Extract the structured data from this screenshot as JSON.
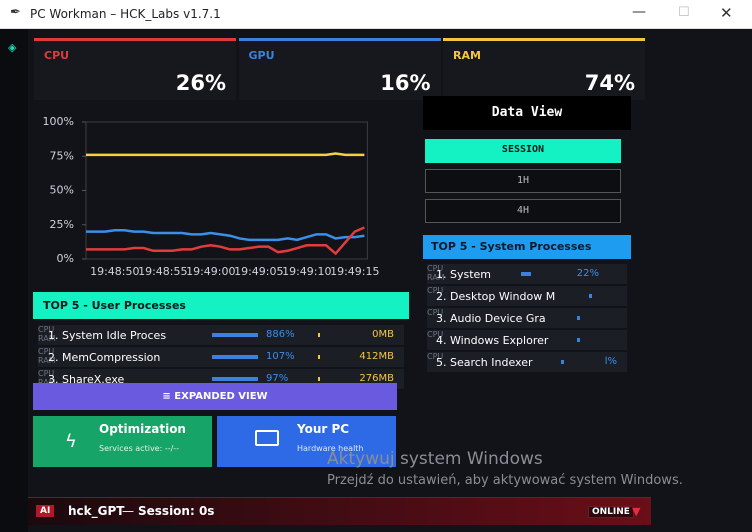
{
  "window": {
    "title": "PC Workman – HCK_Labs v1.7.1"
  },
  "stats": [
    {
      "label": "CPU",
      "value": "26%",
      "color": "#e03b3b"
    },
    {
      "label": "GPU",
      "value": "16%",
      "color": "#3b82e0"
    },
    {
      "label": "RAM",
      "value": "74%",
      "color": "#f5c542"
    }
  ],
  "chart_data": {
    "type": "line",
    "categories": [
      null,
      null,
      null,
      "19:48:50",
      null,
      null,
      null,
      null,
      "19:48:55",
      null,
      null,
      null,
      null,
      "19:49:00",
      null,
      null,
      null,
      null,
      "19:49:05",
      null,
      null,
      null,
      null,
      "19:49:10",
      null,
      null,
      null,
      null,
      "19:49:15",
      null
    ],
    "series": [
      {
        "color": "#f5d142",
        "values": [
          76,
          76,
          76,
          76,
          76,
          76,
          76,
          76,
          76,
          76,
          76,
          76,
          76,
          76,
          76,
          76,
          76,
          76,
          76,
          76,
          76,
          76,
          76,
          76,
          76,
          76,
          77,
          76,
          76,
          76
        ]
      },
      {
        "color": "#3b8fe8",
        "values": [
          20,
          20,
          20,
          21,
          21,
          20,
          20,
          19,
          19,
          19,
          19,
          18,
          18,
          19,
          18,
          17,
          15,
          14,
          14,
          14,
          14,
          15,
          14,
          16,
          18,
          18,
          15,
          16,
          16,
          17
        ]
      },
      {
        "color": "#e23c3c",
        "values": [
          7,
          7,
          7,
          7,
          7,
          8,
          8,
          6,
          6,
          6,
          7,
          7,
          9,
          10,
          9,
          7,
          7,
          8,
          9,
          9,
          5,
          6,
          8,
          10,
          10,
          10,
          4,
          12,
          20,
          23
        ]
      }
    ],
    "ylim": [
      0,
      100
    ],
    "yticks": [
      {
        "value": 0,
        "label": "0%"
      },
      {
        "value": 25,
        "label": "25%"
      },
      {
        "value": 50,
        "label": "50%"
      },
      {
        "value": 75,
        "label": "75%"
      },
      {
        "value": 100,
        "label": "100%"
      }
    ]
  },
  "data_view": {
    "title": "Data View",
    "buttons": [
      "SESSION",
      "1H",
      "4H"
    ]
  },
  "system_processes": {
    "title": "TOP 5 - System Processes",
    "rows": [
      {
        "name": "1. System",
        "cpu_label": "CPU",
        "cpu_value": "22%",
        "ram_label": "RAM"
      },
      {
        "name": "2. Desktop Window M",
        "cpu_label": "CPU"
      },
      {
        "name": "3. Audio Device Gra",
        "cpu_label": "CPU"
      },
      {
        "name": "4. Windows Explorer",
        "cpu_label": "CPU"
      },
      {
        "name": "5. Search Indexer",
        "cpu_label": "CPU",
        "cpu_value": "l%"
      }
    ]
  },
  "user_processes": {
    "title": "TOP 5 - User Processes",
    "rows": [
      {
        "name": "1. System Idle Proces",
        "cpu_label": "CPU",
        "cpu_value": "886%",
        "ram_label": "RAM",
        "ram_value": "0MB"
      },
      {
        "name": "2. MemCompression",
        "cpu_label": "CPU",
        "cpu_value": "107%",
        "ram_label": "RAM",
        "ram_value": "412MB"
      },
      {
        "name": "3. ShareX.exe",
        "cpu_label": "CPU",
        "cpu_value": "97%",
        "ram_label": "RAM",
        "ram_value": "276MB"
      }
    ]
  },
  "expanded_view": "EXPANDED VIEW",
  "cards": [
    {
      "title": "Optimization",
      "subtitle": "Services active: --/--"
    },
    {
      "title": "Your PC",
      "subtitle": "Hardware health"
    }
  ],
  "watermark": {
    "title": "Aktywuj system Windows",
    "subtitle": "Przejdź do ustawień, aby aktywować system Windows."
  },
  "assistant": {
    "badge": "AI",
    "name": "hck_GPT",
    "separator": "—",
    "session": "Session: 0s",
    "status": "ONLINE"
  }
}
